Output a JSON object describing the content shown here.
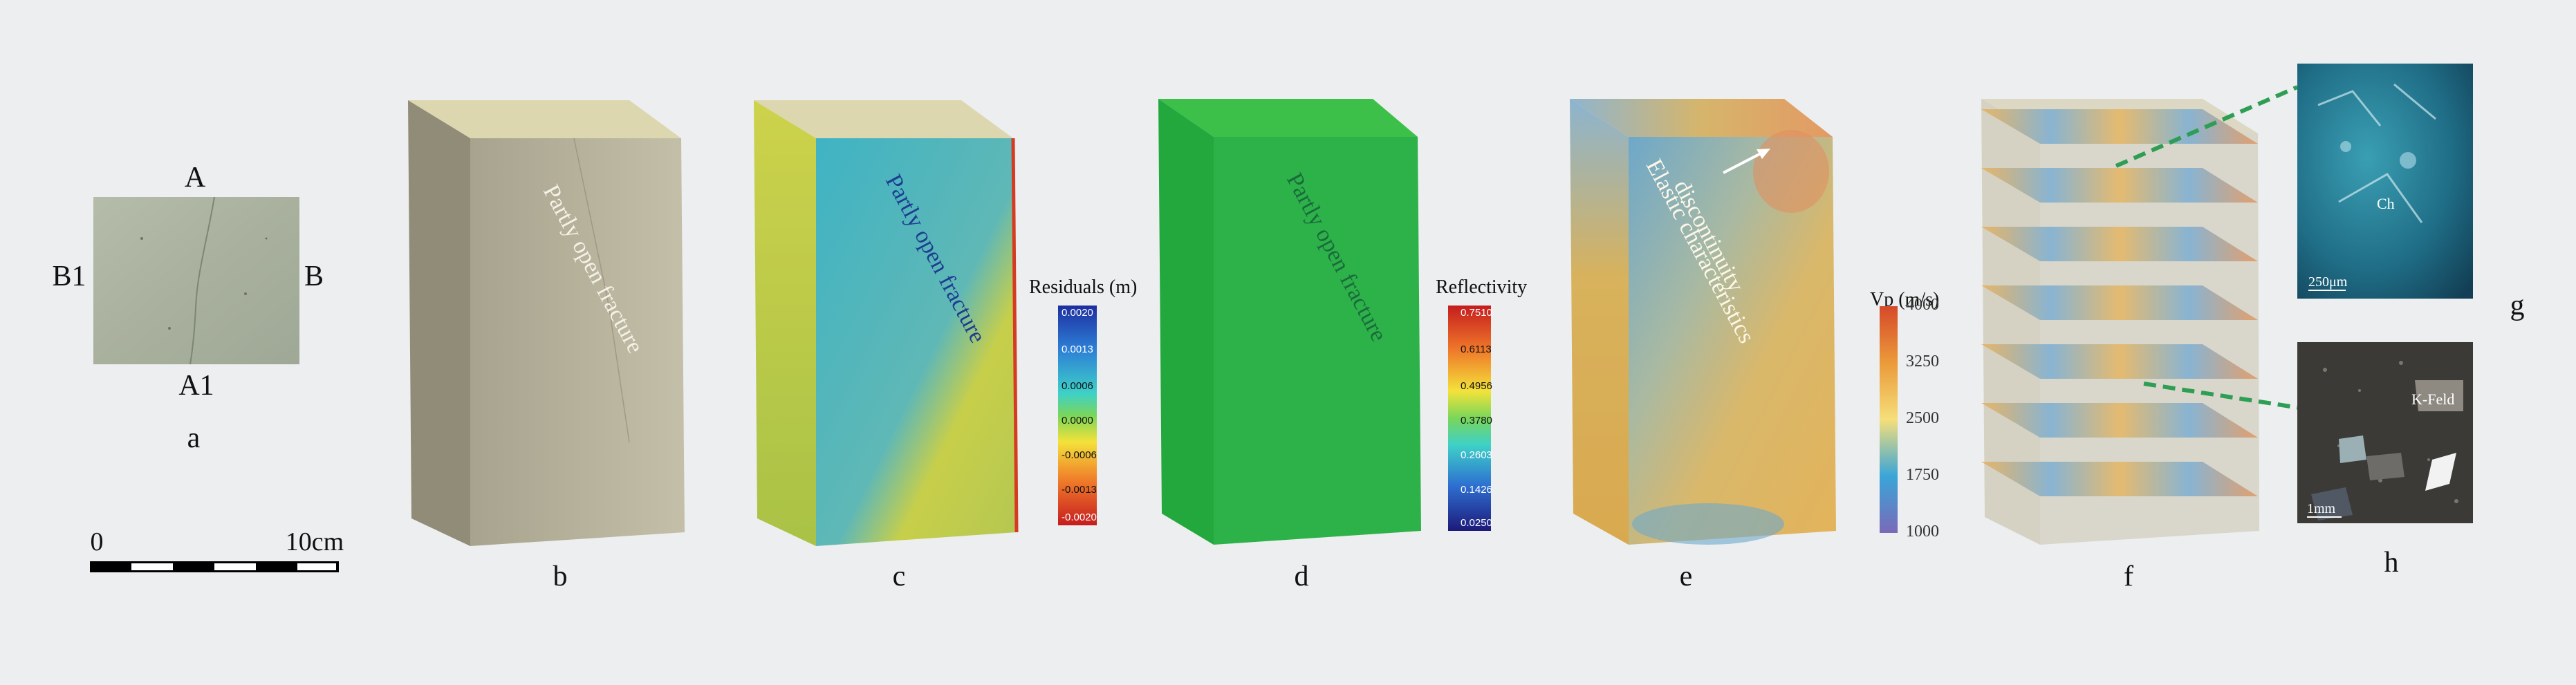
{
  "panels": {
    "a": {
      "letter": "a",
      "top_label": "A",
      "bottom_label": "A1",
      "left_label": "B1",
      "right_label": "B"
    },
    "scale_bar": {
      "start": "0",
      "end": "10cm"
    },
    "b": {
      "letter": "b",
      "annotation": "Partly open fracture"
    },
    "c": {
      "letter": "c",
      "annotation": "Partly open fracture"
    },
    "d": {
      "letter": "d",
      "annotation": "Partly open fracture"
    },
    "e": {
      "letter": "e",
      "annotation_line1": "Elastic characteristics",
      "annotation_line2": "discontinuity"
    },
    "f": {
      "letter": "f"
    },
    "g": {
      "letter": "g",
      "scale": "250μm",
      "mineral": "Ch"
    },
    "h": {
      "letter": "h",
      "scale": "1mm",
      "mineral": "K-Feld"
    }
  },
  "colorbars": {
    "residuals": {
      "title": "Residuals (m)",
      "ticks": [
        "0.0020",
        "0.0013",
        "0.0006",
        "0.0000",
        "-0.0006",
        "-0.0013",
        "-0.0020"
      ]
    },
    "reflectivity": {
      "title": "Reflectivity",
      "ticks": [
        "0.7510",
        "0.6113",
        "0.4956",
        "0.3780",
        "0.2603",
        "0.1426",
        "0.0250"
      ]
    },
    "vp": {
      "title": "Vp (m/s)",
      "ticks": [
        "4000",
        "3250",
        "2500",
        "1750",
        "1000"
      ]
    }
  },
  "colors": {
    "background": "#eceeef",
    "rock_face": "#b8b39d",
    "rock_top": "#dcd6ae",
    "reflectivity_green": "#2db24a",
    "leader_line": "#2e9e55"
  }
}
